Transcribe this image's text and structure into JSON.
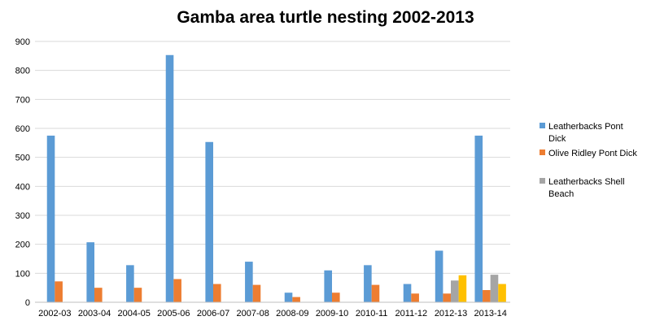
{
  "chart_data": {
    "type": "bar",
    "title": "Gamba area turtle nesting 2002-2013",
    "xlabel": "",
    "ylabel": "",
    "ylim": [
      0,
      900
    ],
    "yticks": [
      0,
      100,
      200,
      300,
      400,
      500,
      600,
      700,
      800,
      900
    ],
    "grid": true,
    "legend_position": "right",
    "categories": [
      "2002-03",
      "2003-04",
      "2004-05",
      "2005-06",
      "2006-07",
      "2007-08",
      "2008-09",
      "2009-10",
      "2010-11",
      "2011-12",
      "2012-13",
      "2013-14"
    ],
    "series": [
      {
        "name": "Leatherbacks Pont Dick",
        "color": "#5B9BD5",
        "legend_lines": [
          "Leatherbacks Pont",
          "Dick"
        ],
        "values": [
          575,
          207,
          128,
          853,
          553,
          140,
          33,
          110,
          128,
          63,
          178,
          575
        ]
      },
      {
        "name": "Olive Ridley Pont Dick",
        "color": "#ED7D31",
        "legend_lines": [
          "Olive Ridley Pont Dick"
        ],
        "values": [
          72,
          50,
          50,
          80,
          63,
          60,
          18,
          33,
          60,
          30,
          30,
          42
        ]
      },
      {
        "name": "Leatherbacks Shell Beach",
        "color": "#A5A5A5",
        "legend_lines": [
          "Leatherbacks Shell",
          "Beach"
        ],
        "values": [
          null,
          null,
          null,
          null,
          null,
          null,
          null,
          null,
          null,
          null,
          75,
          95
        ]
      },
      {
        "name": "",
        "color": "#FFC000",
        "legend_lines": [],
        "values": [
          null,
          null,
          null,
          null,
          null,
          null,
          null,
          null,
          null,
          null,
          93,
          63
        ]
      }
    ]
  }
}
